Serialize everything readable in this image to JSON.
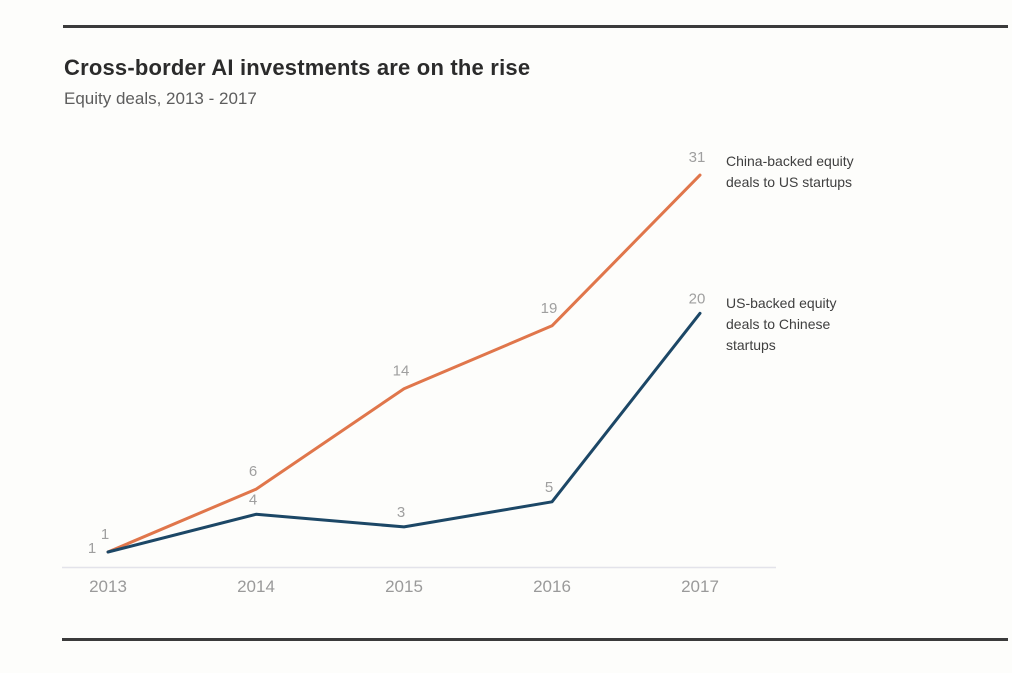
{
  "page": {
    "title": "Cross-border AI investments are on the rise",
    "subtitle": "Equity deals, 2013 - 2017"
  },
  "chart_data": {
    "type": "line",
    "title": "Cross-border AI investments are on the rise",
    "subtitle": "Equity deals, 2013 - 2017",
    "categories": [
      "2013",
      "2014",
      "2015",
      "2016",
      "2017"
    ],
    "series": [
      {
        "name": "China-backed equity deals to US startups",
        "legend_lines": [
          "China-backed equity",
          "deals to US startups"
        ],
        "values": [
          1,
          6,
          14,
          19,
          31
        ],
        "color": "#e0764b"
      },
      {
        "name": "US-backed equity deals to Chinese startups",
        "legend_lines": [
          "US-backed equity",
          "deals to Chinese",
          "startups"
        ],
        "values": [
          1,
          4,
          3,
          5,
          20
        ],
        "color": "#1c4766"
      }
    ],
    "xlabel": "",
    "ylabel": "",
    "ylim": [
      0,
      33
    ],
    "grid": false,
    "legend_position": "right of line endpoints",
    "point_labels_shown": true,
    "colors": {
      "data_label": "#9f9f9f",
      "tick_label": "#9a9a9a",
      "axis_line": "#e3e3ea",
      "legend_text": "#3f3f3f"
    }
  },
  "decor": {
    "top_rule_color": "#3b3b3b",
    "bottom_rule_color": "#3b3b3b",
    "background": "#fdfdfb"
  }
}
